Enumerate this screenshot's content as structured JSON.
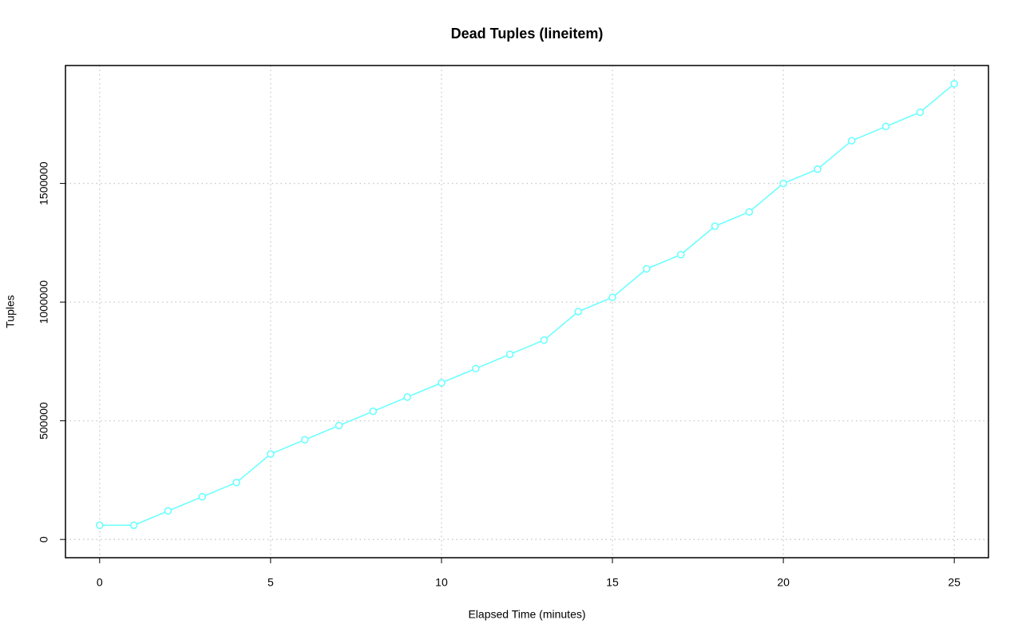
{
  "chart_data": {
    "type": "line",
    "title": "Dead Tuples (lineitem)",
    "x_label": "Elapsed Time (minutes)",
    "y_label": "Tuples",
    "x": [
      0,
      1,
      2,
      3,
      4,
      5,
      6,
      7,
      8,
      9,
      10,
      11,
      12,
      13,
      14,
      15,
      16,
      17,
      18,
      19,
      20,
      21,
      22,
      23,
      24,
      25
    ],
    "series": [
      {
        "name": "lineitem",
        "color": "#66ffff",
        "values": [
          60000,
          60000,
          120000,
          180000,
          240000,
          360000,
          420000,
          480000,
          540000,
          600000,
          660000,
          720000,
          780000,
          840000,
          960000,
          1020000,
          1140000,
          1200000,
          1320000,
          1380000,
          1500000,
          1560000,
          1680000,
          1740000,
          1800000,
          1920000
        ]
      }
    ],
    "xlim": [
      -1,
      26
    ],
    "xticks": [
      0,
      5,
      10,
      15,
      20,
      25
    ],
    "ylim": [
      -76800,
      1996800
    ],
    "yticks": [
      0,
      500000,
      1000000,
      1500000
    ],
    "grid": true
  }
}
